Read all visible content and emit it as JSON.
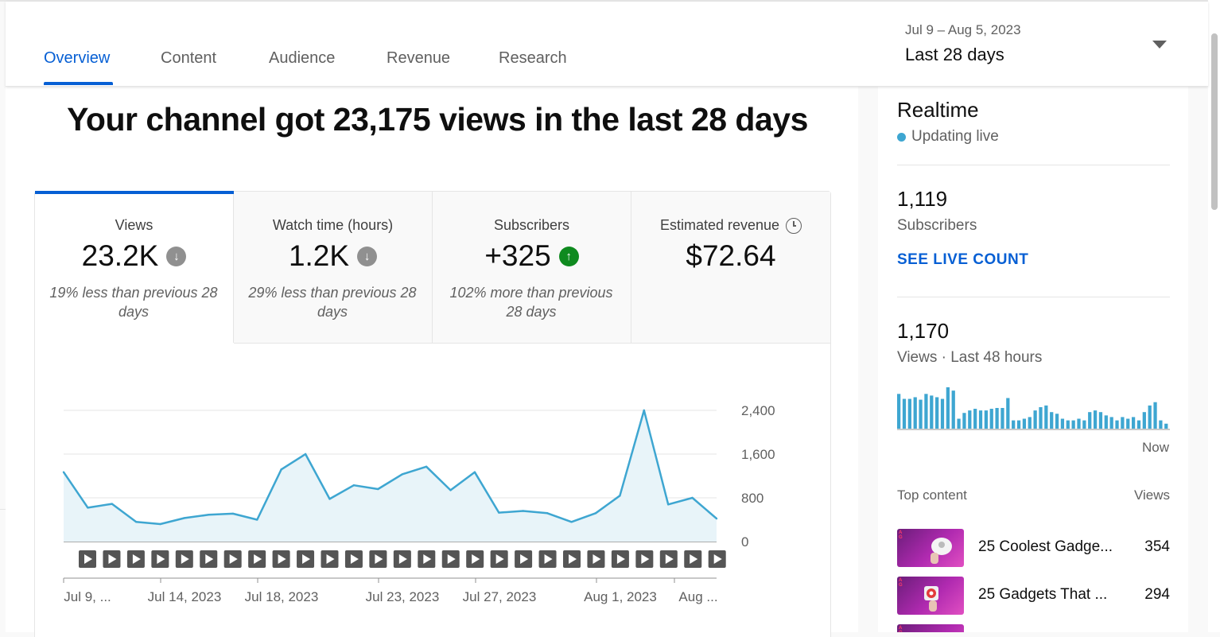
{
  "tabs": [
    "Overview",
    "Content",
    "Audience",
    "Revenue",
    "Research"
  ],
  "date_selector": {
    "range": "Jul 9 – Aug 5, 2023",
    "label": "Last 28 days"
  },
  "headline": "Your channel got 23,175 views in the last 28 days",
  "metrics": [
    {
      "label": "Views",
      "value": "23.2K",
      "trend": "down",
      "note": "19% less than previous 28 days"
    },
    {
      "label": "Watch time (hours)",
      "value": "1.2K",
      "trend": "down",
      "note": "29% less than previous 28 days"
    },
    {
      "label": "Subscribers",
      "value": "+325",
      "trend": "up",
      "note": "102% more than previous 28 days"
    },
    {
      "label": "Estimated revenue",
      "value": "$72.64",
      "trend": "none",
      "note": ""
    }
  ],
  "colors": {
    "accent": "#065fd4",
    "line": "#3ea6d1",
    "fill": "#e8f4f9",
    "down": "#909090",
    "up": "#0f8a1f"
  },
  "chart_data": {
    "type": "area",
    "series": [
      {
        "values": [
          1270,
          620,
          690,
          360,
          320,
          430,
          490,
          510,
          400,
          1320,
          1600,
          780,
          1030,
          960,
          1230,
          1370,
          940,
          1270,
          530,
          560,
          520,
          360,
          520,
          840,
          2400,
          680,
          800,
          420
        ]
      }
    ],
    "x_tick_labels": [
      "Jul 9, ...",
      "Jul 14, 2023",
      "Jul 18, 2023",
      "Jul 23, 2023",
      "Jul 27, 2023",
      "Aug 1, 2023",
      "Aug ..."
    ],
    "y_ticks": [
      "2,400",
      "1,600",
      "800",
      "0"
    ],
    "ylim": [
      0,
      2400
    ],
    "grid": true
  },
  "realtime": {
    "title": "Realtime",
    "status": "Updating live",
    "subscribers": "1,119",
    "subscribers_label": "Subscribers",
    "live_count_link": "SEE LIVE COUNT",
    "views": "1,170",
    "views_label": "Views · Last 48 hours",
    "now_label": "Now",
    "bars": [
      42,
      36,
      36,
      38,
      35,
      42,
      40,
      38,
      36,
      50,
      46,
      12,
      19,
      22,
      24,
      22,
      22,
      24,
      25,
      25,
      37,
      10,
      10,
      12,
      14,
      22,
      26,
      28,
      20,
      18,
      12,
      10,
      10,
      12,
      10,
      20,
      22,
      20,
      16,
      14,
      10,
      14,
      12,
      14,
      10,
      20,
      28,
      32,
      10,
      6
    ],
    "top_content_label": "Top content",
    "views_col_label": "Views",
    "top_content": [
      {
        "title": "25 Coolest Gadge...",
        "views": "354"
      },
      {
        "title": "25 Gadgets That ...",
        "views": "294"
      }
    ]
  }
}
